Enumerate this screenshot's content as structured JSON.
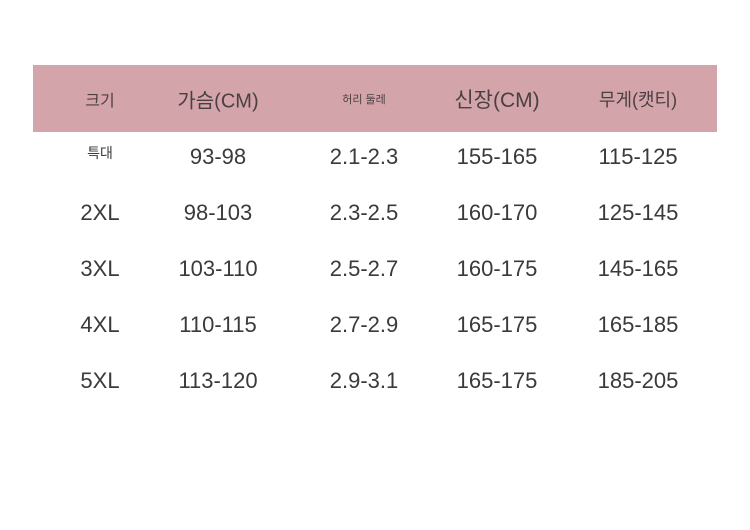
{
  "table": {
    "header": [
      "크기",
      "가슴(CM)",
      "허리 둘레",
      "신장(CM)",
      "무게(캣티)"
    ],
    "rows": [
      [
        "특대",
        "93-98",
        "2.1-2.3",
        "155-165",
        "115-125"
      ],
      [
        "2XL",
        "98-103",
        "2.3-2.5",
        "160-170",
        "125-145"
      ],
      [
        "3XL",
        "103-110",
        "2.5-2.7",
        "160-175",
        "145-165"
      ],
      [
        "4XL",
        "110-115",
        "2.7-2.9",
        "165-175",
        "165-185"
      ],
      [
        "5XL",
        "113-120",
        "2.9-3.1",
        "165-175",
        "185-205"
      ]
    ]
  }
}
